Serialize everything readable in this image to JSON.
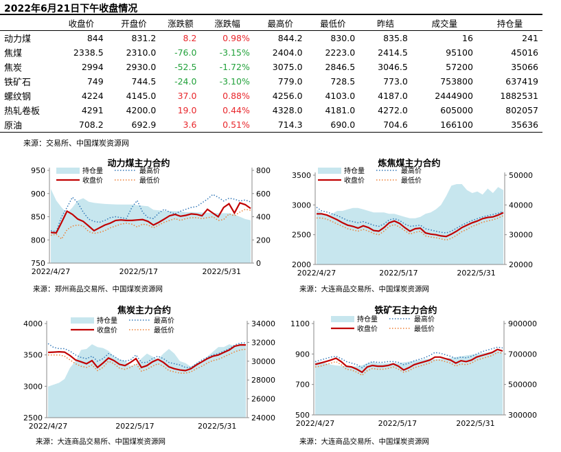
{
  "title": "2022年6月21日下午收盘情况",
  "table": {
    "headers": [
      "",
      "收盘价",
      "开盘价",
      "涨跌额",
      "涨跌幅",
      "最高价",
      "最低价",
      "昨结",
      "成交量",
      "持仓量"
    ],
    "rows": [
      {
        "name": "动力煤",
        "close": "844",
        "open": "831.2",
        "chg": "8.2",
        "pct": "0.98%",
        "high": "844.2",
        "low": "830.0",
        "prev": "835.8",
        "vol": "16",
        "oi": "241",
        "dir": "up"
      },
      {
        "name": "焦煤",
        "close": "2338.5",
        "open": "2310.0",
        "chg": "-76.0",
        "pct": "-3.15%",
        "high": "2404.0",
        "low": "2223.0",
        "prev": "2414.5",
        "vol": "95100",
        "oi": "45016",
        "dir": "down"
      },
      {
        "name": "焦炭",
        "close": "2994",
        "open": "2930.0",
        "chg": "-52.5",
        "pct": "-1.72%",
        "high": "3075.0",
        "low": "2846.5",
        "prev": "3046.5",
        "vol": "57200",
        "oi": "35066",
        "dir": "down"
      },
      {
        "name": "铁矿石",
        "close": "749",
        "open": "744.5",
        "chg": "-24.0",
        "pct": "-3.10%",
        "high": "779.0",
        "low": "728.5",
        "prev": "773.0",
        "vol": "753800",
        "oi": "637419",
        "dir": "down"
      },
      {
        "name": "螺纹钢",
        "close": "4224",
        "open": "4145.0",
        "chg": "37.0",
        "pct": "0.88%",
        "high": "4256.0",
        "low": "4103.0",
        "prev": "4187.0",
        "vol": "2444900",
        "oi": "1882531",
        "dir": "up"
      },
      {
        "name": "热轧卷板",
        "close": "4291",
        "open": "4200.0",
        "chg": "19.0",
        "pct": "0.44%",
        "high": "4328.0",
        "low": "4181.0",
        "prev": "4272.0",
        "vol": "605000",
        "oi": "802057",
        "dir": "up"
      },
      {
        "name": "原油",
        "close": "708.2",
        "open": "692.9",
        "chg": "3.6",
        "pct": "0.51%",
        "high": "714.3",
        "low": "690.0",
        "prev": "704.6",
        "vol": "166100",
        "oi": "35636",
        "dir": "up"
      }
    ],
    "source": "来源：交易所、中国煤炭资源网"
  },
  "colors": {
    "up": "#e8262b",
    "down": "#21a13a",
    "close": "#c00000",
    "high": "#2e75b6",
    "low": "#ed7d31",
    "oi": "#c7e6ee"
  },
  "chart_data": [
    {
      "type": "line",
      "title": "动力煤主力合约",
      "x_ticks": [
        "2022/4/27",
        "2022/5/17",
        "2022/5/31"
      ],
      "ylim": [
        750,
        950
      ],
      "y_ticks": [
        750,
        800,
        850,
        900,
        950
      ],
      "y2lim": [
        0,
        800
      ],
      "y2_ticks": [
        0,
        200,
        400,
        600,
        800
      ],
      "legend": [
        "持仓量",
        "最高价",
        "收盘价",
        "最低价"
      ],
      "source": "来源：郑州商品交易所、中国煤炭资源网",
      "series": [
        {
          "name": "收盘价",
          "axis": "left",
          "style": "close",
          "values": [
            816,
            815,
            838,
            862,
            855,
            845,
            840,
            830,
            820,
            826,
            832,
            836,
            842,
            843,
            842,
            842,
            843,
            844,
            840,
            832,
            838,
            845,
            852,
            855,
            851,
            853,
            856,
            855,
            852,
            866,
            858,
            850,
            870,
            878,
            858,
            880,
            876,
            868
          ]
        },
        {
          "name": "最高价",
          "axis": "left",
          "style": "high",
          "values": [
            820,
            818,
            850,
            870,
            892,
            880,
            860,
            845,
            840,
            838,
            842,
            848,
            850,
            848,
            846,
            870,
            885,
            860,
            848,
            846,
            858,
            866,
            860,
            856,
            862,
            866,
            870,
            872,
            880,
            888,
            898,
            892,
            884,
            890,
            888,
            884,
            886,
            882
          ]
        },
        {
          "name": "最低价",
          "axis": "left",
          "style": "low",
          "values": [
            810,
            812,
            802,
            822,
            830,
            832,
            830,
            818,
            814,
            816,
            820,
            826,
            830,
            834,
            836,
            834,
            828,
            834,
            832,
            826,
            832,
            838,
            842,
            846,
            842,
            846,
            848,
            848,
            846,
            848,
            850,
            842,
            844,
            856,
            852,
            860,
            866,
            864
          ]
        },
        {
          "name": "持仓量",
          "axis": "right",
          "style": "oi",
          "values": [
            640,
            540,
            480,
            430,
            480,
            540,
            560,
            530,
            520,
            515,
            510,
            508,
            506,
            505,
            505,
            505,
            500,
            495,
            490,
            460,
            455,
            450,
            450,
            448,
            445,
            440,
            440,
            438,
            436,
            434,
            432,
            430,
            430,
            430,
            420,
            400,
            380,
            370
          ]
        }
      ]
    },
    {
      "type": "line",
      "title": "炼焦煤主力合约",
      "x_ticks": [
        "2022/4/27",
        "2022/5/17",
        "2022/5/31"
      ],
      "ylim": [
        2000,
        3500
      ],
      "y_ticks": [
        2000,
        2500,
        3000,
        3500
      ],
      "y2lim": [
        20000,
        50000
      ],
      "y2_ticks": [
        20000,
        30000,
        40000,
        50000
      ],
      "legend": [
        "持仓量",
        "最高价",
        "收盘价",
        "最低价"
      ],
      "source": "来源：大连商品交易所、中国煤炭资源网",
      "series": [
        {
          "name": "收盘价",
          "axis": "left",
          "style": "close",
          "values": [
            2850,
            2850,
            2830,
            2790,
            2750,
            2700,
            2660,
            2640,
            2610,
            2650,
            2620,
            2570,
            2560,
            2620,
            2700,
            2730,
            2690,
            2620,
            2560,
            2600,
            2610,
            2530,
            2510,
            2500,
            2480,
            2470,
            2510,
            2560,
            2620,
            2660,
            2700,
            2730,
            2770,
            2790,
            2800,
            2830,
            2870
          ]
        },
        {
          "name": "最高价",
          "axis": "left",
          "style": "high",
          "values": [
            2960,
            2900,
            2880,
            2850,
            2820,
            2780,
            2740,
            2720,
            2700,
            2720,
            2690,
            2660,
            2640,
            2680,
            2750,
            2770,
            2740,
            2680,
            2640,
            2650,
            2660,
            2600,
            2580,
            2560,
            2540,
            2530,
            2560,
            2610,
            2660,
            2700,
            2740,
            2770,
            2800,
            2820,
            2840,
            2860,
            2890
          ]
        },
        {
          "name": "最低价",
          "axis": "left",
          "style": "low",
          "values": [
            2780,
            2780,
            2760,
            2720,
            2680,
            2640,
            2600,
            2580,
            2560,
            2590,
            2560,
            2520,
            2500,
            2560,
            2640,
            2670,
            2630,
            2570,
            2510,
            2540,
            2560,
            2480,
            2460,
            2450,
            2430,
            2410,
            2440,
            2490,
            2550,
            2590,
            2640,
            2670,
            2710,
            2730,
            2750,
            2780,
            2820
          ]
        },
        {
          "name": "持仓量",
          "axis": "right",
          "style": "oi",
          "values": [
            38500,
            37500,
            36500,
            37000,
            38000,
            38000,
            38500,
            39000,
            39000,
            38500,
            38000,
            37500,
            37500,
            37500,
            37000,
            37000,
            36500,
            36000,
            35500,
            35500,
            36000,
            37000,
            37500,
            38500,
            40000,
            43000,
            46500,
            47000,
            47000,
            45000,
            44000,
            44500,
            43500,
            45500,
            44000,
            46000,
            45000
          ]
        }
      ]
    },
    {
      "type": "line",
      "title": "焦炭主力合约",
      "x_ticks": [
        "2022/4/27",
        "2022/5/17",
        "2022/5/31"
      ],
      "ylim": [
        2500,
        4000
      ],
      "y_ticks": [
        2500,
        3000,
        3500,
        4000
      ],
      "y2lim": [
        24000,
        34000
      ],
      "y2_ticks": [
        24000,
        26000,
        28000,
        30000,
        32000,
        34000
      ],
      "legend": [
        "持仓量",
        "最高价",
        "收盘价",
        "最低价"
      ],
      "source": "来源：大连商品交易所、中国煤炭资源网",
      "series": [
        {
          "name": "收盘价",
          "axis": "left",
          "style": "close",
          "values": [
            3540,
            3545,
            3550,
            3545,
            3490,
            3420,
            3390,
            3360,
            3410,
            3300,
            3370,
            3450,
            3410,
            3350,
            3330,
            3380,
            3440,
            3300,
            3330,
            3390,
            3430,
            3380,
            3310,
            3280,
            3260,
            3250,
            3280,
            3340,
            3390,
            3440,
            3480,
            3500,
            3540,
            3580,
            3640,
            3660,
            3660
          ]
        },
        {
          "name": "最高价",
          "axis": "left",
          "style": "high",
          "values": [
            3680,
            3620,
            3600,
            3600,
            3560,
            3500,
            3460,
            3440,
            3480,
            3400,
            3440,
            3520,
            3480,
            3420,
            3400,
            3420,
            3500,
            3380,
            3380,
            3440,
            3480,
            3440,
            3380,
            3360,
            3340,
            3300,
            3300,
            3360,
            3420,
            3460,
            3500,
            3520,
            3560,
            3600,
            3660,
            3690,
            3690
          ]
        },
        {
          "name": "最低价",
          "axis": "left",
          "style": "low",
          "values": [
            3500,
            3500,
            3500,
            3480,
            3420,
            3360,
            3320,
            3300,
            3340,
            3250,
            3300,
            3400,
            3360,
            3290,
            3270,
            3300,
            3360,
            3240,
            3270,
            3320,
            3360,
            3320,
            3250,
            3230,
            3210,
            3210,
            3230,
            3280,
            3320,
            3370,
            3410,
            3430,
            3470,
            3510,
            3550,
            3580,
            3590
          ]
        },
        {
          "name": "持仓量",
          "axis": "right",
          "style": "oi",
          "values": [
            27300,
            27500,
            27700,
            28100,
            29300,
            30000,
            31200,
            31300,
            31800,
            31500,
            31400,
            31100,
            30500,
            30200,
            30000,
            29500,
            29600,
            30300,
            30800,
            30500,
            30200,
            30800,
            31300,
            30800,
            30000,
            29800,
            29400,
            29800,
            30000,
            30500,
            31000,
            31500,
            31500,
            31800,
            31600,
            31900,
            31800
          ]
        }
      ]
    },
    {
      "type": "line",
      "title": "铁矿石主力合约",
      "x_ticks": [
        "2022/4/27",
        "2022/5/17",
        "2022/5/31"
      ],
      "ylim": [
        500,
        1100
      ],
      "y_ticks": [
        500,
        700,
        900,
        1100
      ],
      "y2lim": [
        300000,
        900000
      ],
      "y2_ticks": [
        300000,
        500000,
        700000,
        900000
      ],
      "legend": [
        "持仓量",
        "最高价",
        "收盘价",
        "最低价"
      ],
      "source": "来源：大连商品交易所、中国煤炭资源网",
      "series": [
        {
          "name": "收盘价",
          "axis": "left",
          "style": "close",
          "values": [
            832,
            840,
            850,
            860,
            872,
            850,
            820,
            815,
            800,
            780,
            815,
            825,
            820,
            820,
            825,
            835,
            820,
            795,
            810,
            830,
            840,
            850,
            860,
            880,
            880,
            870,
            860,
            840,
            856,
            850,
            860,
            880,
            890,
            900,
            910,
            930,
            920
          ]
        },
        {
          "name": "最高价",
          "axis": "left",
          "style": "high",
          "values": [
            850,
            860,
            870,
            880,
            885,
            870,
            850,
            840,
            830,
            810,
            835,
            850,
            845,
            845,
            850,
            850,
            845,
            830,
            840,
            855,
            865,
            875,
            890,
            910,
            905,
            895,
            885,
            870,
            880,
            875,
            885,
            900,
            915,
            925,
            935,
            945,
            940
          ]
        },
        {
          "name": "最低价",
          "axis": "left",
          "style": "low",
          "values": [
            815,
            820,
            830,
            840,
            850,
            830,
            800,
            795,
            780,
            760,
            790,
            805,
            800,
            800,
            805,
            815,
            800,
            780,
            790,
            810,
            820,
            830,
            840,
            860,
            860,
            850,
            840,
            820,
            835,
            830,
            840,
            860,
            870,
            880,
            890,
            910,
            905
          ]
        },
        {
          "name": "持仓量",
          "axis": "right",
          "style": "oi",
          "values": [
            645000,
            650000,
            640000,
            630000,
            625000,
            622000,
            618000,
            617000,
            620000,
            625000,
            640000,
            648000,
            640000,
            638000,
            640000,
            642000,
            640000,
            645000,
            650000,
            655000,
            660000,
            665000,
            670000,
            665000,
            668000,
            672000,
            675000,
            680000,
            685000,
            690000,
            695000,
            700000,
            705000,
            710000,
            715000,
            720000,
            712000
          ]
        }
      ]
    }
  ]
}
